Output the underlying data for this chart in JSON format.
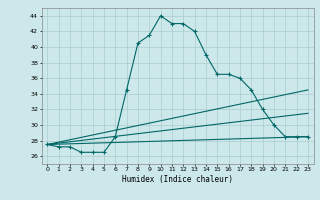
{
  "xlabel": "Humidex (Indice chaleur)",
  "background_color": "#cce8ea",
  "grid_color": "#aacccc",
  "line_color": "#006666",
  "xlim": [
    -0.5,
    23.5
  ],
  "ylim": [
    25.0,
    45.0
  ],
  "yticks": [
    26,
    28,
    30,
    32,
    34,
    36,
    38,
    40,
    42,
    44
  ],
  "xticks": [
    0,
    1,
    2,
    3,
    4,
    5,
    6,
    7,
    8,
    9,
    10,
    11,
    12,
    13,
    14,
    15,
    16,
    17,
    18,
    19,
    20,
    21,
    22,
    23
  ],
  "line1_x": [
    0,
    1,
    2,
    3,
    4,
    5,
    6,
    7,
    8,
    9,
    10,
    11,
    12,
    13,
    14,
    15,
    16,
    17,
    18,
    19,
    20,
    21,
    22,
    23
  ],
  "line1_y": [
    27.5,
    27.2,
    27.2,
    26.5,
    26.5,
    26.5,
    28.5,
    34.5,
    40.5,
    41.5,
    44.0,
    43.0,
    43.0,
    42.0,
    39.0,
    36.5,
    36.5,
    36.0,
    34.5,
    32.0,
    30.0,
    28.5,
    28.5,
    28.5
  ],
  "line2_x": [
    0,
    23
  ],
  "line2_y": [
    27.5,
    34.5
  ],
  "line3_x": [
    0,
    23
  ],
  "line3_y": [
    27.5,
    31.5
  ],
  "line4_x": [
    0,
    23
  ],
  "line4_y": [
    27.5,
    28.5
  ]
}
